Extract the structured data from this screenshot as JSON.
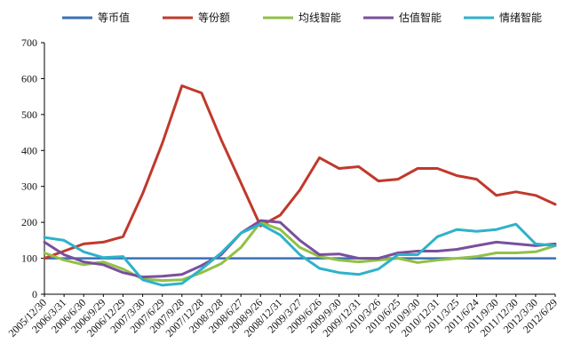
{
  "chart_data": {
    "type": "line",
    "title": "",
    "xlabel": "",
    "ylabel": "",
    "ylim": [
      0,
      700
    ],
    "yticks": [
      0,
      100,
      200,
      300,
      400,
      500,
      600,
      700
    ],
    "grid": false,
    "legend_position": "top",
    "x_tick_labels": [
      "2005/12/30",
      "2006/3/31",
      "2006/6/30",
      "2006/9/29",
      "2006/12/29",
      "2007/3/30",
      "2007/6/29",
      "2007/9/28",
      "2007/12/28",
      "2008/3/28",
      "2008/6/27",
      "2008/9/26",
      "2008/12/31",
      "2009/3/27",
      "2009/6/26",
      "2009/9/30",
      "2009/12/31",
      "2010/3/26",
      "2010/6/25",
      "2010/9/30",
      "2010/12/31",
      "2011/3/25",
      "2011/6/24",
      "2011/9/30",
      "2011/12/30",
      "2012/3/30",
      "2012/6/29"
    ],
    "series": [
      {
        "name": "等币值",
        "color": "#3a6fb5",
        "values": [
          100,
          100,
          100,
          100,
          100,
          100,
          100,
          100,
          100,
          100,
          100,
          100,
          100,
          100,
          100,
          100,
          100,
          100,
          100,
          100,
          100,
          100,
          100,
          100,
          100,
          100,
          100
        ]
      },
      {
        "name": "等份额",
        "color": "#c0392b",
        "values": [
          100,
          120,
          140,
          145,
          160,
          280,
          420,
          580,
          560,
          430,
          310,
          190,
          220,
          290,
          380,
          350,
          355,
          315,
          320,
          350,
          350,
          330,
          320,
          275,
          285,
          275,
          250
        ]
      },
      {
        "name": "均线智能",
        "color": "#92c047",
        "values": [
          115,
          95,
          82,
          90,
          70,
          42,
          38,
          40,
          60,
          85,
          130,
          200,
          180,
          130,
          105,
          95,
          90,
          95,
          100,
          88,
          95,
          100,
          105,
          115,
          115,
          118,
          135
        ]
      },
      {
        "name": "估值智能",
        "color": "#7a4f9d",
        "values": [
          145,
          110,
          90,
          82,
          60,
          48,
          50,
          55,
          80,
          110,
          170,
          205,
          200,
          150,
          110,
          112,
          100,
          100,
          115,
          120,
          120,
          125,
          135,
          145,
          140,
          135,
          140
        ]
      },
      {
        "name": "情绪智能",
        "color": "#2eb2c9",
        "values": [
          158,
          150,
          118,
          102,
          105,
          40,
          25,
          30,
          70,
          115,
          170,
          195,
          165,
          110,
          72,
          60,
          55,
          70,
          110,
          110,
          160,
          180,
          175,
          180,
          195,
          140,
          135
        ]
      }
    ]
  }
}
